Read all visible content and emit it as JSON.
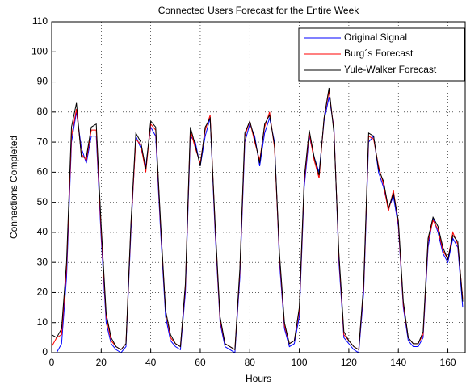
{
  "chart_data": {
    "type": "line",
    "title": "Connected Users Forecast for the Entire Week",
    "xlabel": "Hours",
    "ylabel": "Connections Completed",
    "xlim": [
      0,
      167
    ],
    "ylim": [
      0,
      110
    ],
    "xticks": [
      0,
      20,
      40,
      60,
      80,
      100,
      120,
      140,
      160
    ],
    "yticks": [
      0,
      10,
      20,
      30,
      40,
      50,
      60,
      70,
      80,
      90,
      100,
      110
    ],
    "grid": true,
    "legend": "top-right",
    "x": [
      0,
      2,
      4,
      6,
      8,
      10,
      12,
      14,
      16,
      18,
      20,
      22,
      24,
      26,
      28,
      30,
      32,
      34,
      36,
      38,
      40,
      42,
      44,
      46,
      48,
      50,
      52,
      54,
      56,
      58,
      60,
      62,
      64,
      66,
      68,
      70,
      72,
      74,
      76,
      78,
      80,
      82,
      84,
      86,
      88,
      90,
      92,
      94,
      96,
      98,
      100,
      102,
      104,
      106,
      108,
      110,
      112,
      114,
      116,
      118,
      120,
      122,
      124,
      126,
      128,
      130,
      132,
      134,
      136,
      138,
      140,
      142,
      144,
      146,
      148,
      150,
      152,
      154,
      156,
      158,
      160,
      162,
      164,
      166
    ],
    "series": [
      {
        "name": "Original Signal",
        "color": "#0000ff",
        "values": [
          0,
          0,
          3,
          25,
          70,
          80,
          68,
          63,
          72,
          72,
          38,
          10,
          3,
          1,
          0,
          2,
          40,
          72,
          68,
          62,
          75,
          72,
          40,
          12,
          4,
          2,
          1,
          20,
          72,
          70,
          62,
          72,
          78,
          40,
          10,
          2,
          1,
          0,
          25,
          70,
          76,
          72,
          62,
          73,
          78,
          70,
          30,
          8,
          2,
          3,
          12,
          55,
          72,
          65,
          60,
          77,
          85,
          75,
          30,
          5,
          3,
          1,
          0,
          20,
          70,
          72,
          60,
          55,
          48,
          52,
          42,
          15,
          4,
          2,
          2,
          5,
          35,
          45,
          40,
          33,
          30,
          38,
          35,
          15
        ]
      },
      {
        "name": "Burg´s Forecast",
        "color": "#ff0000",
        "values": [
          2,
          5,
          6,
          28,
          72,
          81,
          66,
          64,
          74,
          74,
          40,
          12,
          4,
          2,
          1,
          3,
          42,
          71,
          69,
          60,
          76,
          74,
          42,
          14,
          5,
          3,
          2,
          22,
          74,
          68,
          63,
          74,
          79,
          42,
          11,
          3,
          2,
          1,
          27,
          72,
          77,
          70,
          64,
          75,
          80,
          68,
          32,
          9,
          3,
          4,
          14,
          57,
          73,
          64,
          58,
          78,
          87,
          74,
          32,
          6,
          4,
          2,
          1,
          22,
          72,
          71,
          62,
          56,
          47,
          54,
          43,
          16,
          5,
          3,
          3,
          6,
          37,
          44,
          41,
          34,
          31,
          40,
          36,
          18
        ]
      },
      {
        "name": "Yule-Walker Forecast",
        "color": "#000000",
        "values": [
          6,
          5,
          8,
          30,
          75,
          83,
          65,
          65,
          75,
          76,
          42,
          13,
          5,
          2,
          1,
          3,
          43,
          73,
          70,
          61,
          77,
          75,
          43,
          14,
          6,
          3,
          2,
          23,
          75,
          69,
          62,
          75,
          78,
          43,
          12,
          3,
          2,
          1,
          28,
          73,
          77,
          71,
          63,
          76,
          79,
          69,
          33,
          10,
          3,
          4,
          15,
          58,
          74,
          65,
          59,
          78,
          88,
          73,
          33,
          7,
          4,
          2,
          1,
          23,
          73,
          72,
          61,
          57,
          48,
          53,
          44,
          17,
          5,
          3,
          3,
          7,
          38,
          45,
          42,
          35,
          31,
          39,
          37,
          17
        ]
      }
    ]
  }
}
